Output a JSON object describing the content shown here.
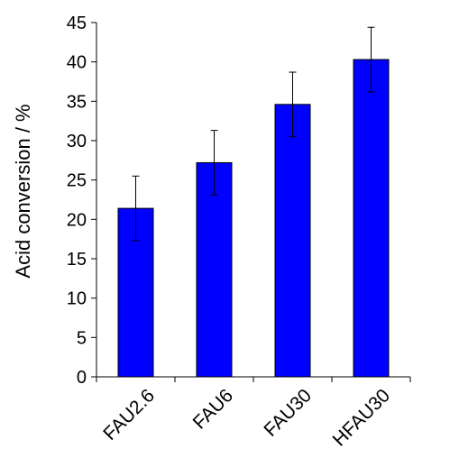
{
  "chart_data": {
    "type": "bar",
    "title": "",
    "xlabel": "",
    "ylabel": "Acid conversion / %",
    "ylim": [
      0,
      45
    ],
    "yticks": [
      0,
      5,
      10,
      15,
      20,
      25,
      30,
      35,
      40,
      45
    ],
    "categories": [
      "FAU2.6",
      "FAU6",
      "FAU30",
      "HFAU30"
    ],
    "values": [
      21.4,
      27.2,
      34.6,
      40.3
    ],
    "error": [
      4.1,
      4.1,
      4.1,
      4.1
    ],
    "bar_color": "#0000ff",
    "grid": false,
    "legend": "none"
  }
}
